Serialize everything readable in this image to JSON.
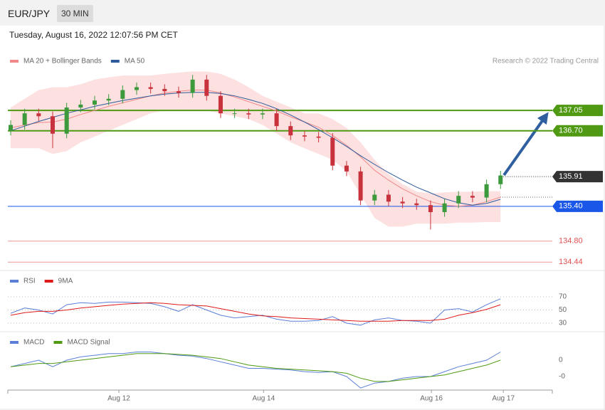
{
  "header": {
    "symbol": "EUR/JPY",
    "interval": "30 MIN",
    "timestamp": "Tuesday, August 16, 2022 12:07:56 PM CET"
  },
  "chart_data": [
    {
      "type": "candlestick",
      "credit": "Research © 2022 Trading Central",
      "ylim": [
        134.32,
        137.97
      ],
      "up_color": "#3c9a3c",
      "down_color": "#c8323c",
      "band_color": "#fde0e0",
      "open": [
        136.7,
        136.8,
        137.0,
        136.95,
        136.65,
        137.1,
        137.15,
        137.22,
        137.25,
        137.4,
        137.45,
        137.42,
        137.38,
        137.35,
        137.58,
        137.3,
        137.0,
        137.0,
        136.98,
        137.0,
        136.78,
        136.62,
        136.6,
        136.58,
        136.1,
        136.0,
        135.5,
        135.6,
        135.48,
        135.45,
        135.42,
        135.3,
        135.45,
        135.58,
        135.55,
        135.78
      ],
      "high": [
        136.88,
        137.08,
        137.08,
        137.03,
        137.18,
        137.23,
        137.3,
        137.33,
        137.48,
        137.53,
        137.53,
        137.5,
        137.46,
        137.66,
        137.66,
        137.38,
        137.08,
        137.08,
        137.08,
        137.08,
        136.86,
        136.7,
        136.68,
        136.66,
        136.18,
        136.08,
        135.68,
        135.68,
        135.56,
        135.53,
        135.5,
        135.53,
        135.66,
        135.66,
        135.86,
        136.01
      ],
      "low": [
        136.62,
        136.72,
        136.87,
        136.4,
        136.57,
        137.02,
        137.07,
        137.14,
        137.17,
        137.32,
        137.34,
        137.3,
        137.27,
        137.27,
        137.22,
        136.92,
        136.92,
        136.9,
        136.9,
        136.7,
        136.54,
        136.52,
        136.5,
        136.02,
        135.92,
        135.42,
        135.42,
        135.4,
        135.37,
        135.34,
        135.0,
        135.22,
        135.37,
        135.47,
        135.47,
        135.7
      ],
      "close": [
        136.8,
        137.0,
        136.95,
        136.65,
        137.1,
        137.15,
        137.22,
        137.25,
        137.4,
        137.45,
        137.42,
        137.38,
        137.35,
        137.58,
        137.3,
        137.0,
        137.0,
        136.98,
        137.0,
        136.78,
        136.62,
        136.6,
        136.58,
        136.1,
        136.0,
        135.5,
        135.6,
        135.48,
        135.45,
        135.42,
        135.3,
        135.45,
        135.58,
        135.55,
        135.78,
        135.93
      ],
      "series": [
        {
          "name": "MA 20 + Bollinger Bands",
          "color": "#f08a8a",
          "values": [
            136.75,
            136.8,
            136.84,
            136.85,
            136.9,
            136.98,
            137.05,
            137.12,
            137.18,
            137.24,
            137.3,
            137.35,
            137.38,
            137.4,
            137.4,
            137.35,
            137.28,
            137.2,
            137.12,
            137.04,
            136.94,
            136.85,
            136.76,
            136.62,
            136.45,
            136.25,
            136.02,
            135.85,
            135.7,
            135.58,
            135.48,
            135.42,
            135.4,
            135.42,
            135.48,
            135.56
          ],
          "upper": [
            137.1,
            137.25,
            137.4,
            137.45,
            137.45,
            137.5,
            137.58,
            137.62,
            137.65,
            137.65,
            137.65,
            137.68,
            137.7,
            137.72,
            137.72,
            137.68,
            137.58,
            137.45,
            137.3,
            137.2,
            137.1,
            137.0,
            137.0,
            136.9,
            136.75,
            136.5,
            136.2,
            135.95,
            135.78,
            135.65,
            135.62,
            135.64,
            135.65,
            135.65,
            135.66,
            135.66
          ],
          "lower": [
            136.4,
            136.4,
            136.4,
            136.3,
            136.35,
            136.5,
            136.6,
            136.7,
            136.8,
            136.9,
            137.0,
            137.05,
            137.05,
            137.05,
            137.05,
            137.0,
            136.95,
            136.9,
            136.8,
            136.65,
            136.5,
            136.4,
            136.3,
            136.2,
            136.0,
            135.6,
            135.2,
            135.05,
            135.05,
            135.1,
            135.1,
            135.1,
            135.12,
            135.12,
            135.13,
            135.13
          ]
        },
        {
          "name": "MA 50",
          "color": "#2d5a9a",
          "values": [
            136.7,
            136.78,
            136.86,
            136.93,
            137.0,
            137.06,
            137.12,
            137.17,
            137.22,
            137.26,
            137.3,
            137.33,
            137.35,
            137.36,
            137.36,
            137.34,
            137.3,
            137.24,
            137.17,
            137.08,
            136.97,
            136.85,
            136.72,
            136.58,
            136.43,
            136.27,
            136.12,
            135.98,
            135.85,
            135.73,
            135.63,
            135.53,
            135.46,
            135.42,
            135.45,
            135.52
          ]
        }
      ],
      "levels": [
        {
          "value": 137.05,
          "color": "#4f9a12",
          "box": true
        },
        {
          "value": 136.7,
          "label": "136.70",
          "color": "#4f9a12",
          "box": true
        },
        {
          "value": 135.4,
          "label": "135.40",
          "color": "#1a56e8",
          "box": true
        },
        {
          "value": 134.8,
          "label": "134.80",
          "color": "#e05050",
          "box": false
        },
        {
          "value": 134.44,
          "color": "#e05050",
          "box": false
        }
      ],
      "last_price": {
        "value": 135.91,
        "color": "#333333"
      }
    },
    {
      "type": "line",
      "ylim": [
        20,
        100
      ],
      "yticks": [
        30,
        50,
        70
      ],
      "grid": true,
      "series": [
        {
          "name": "RSI",
          "color": "#5b7fd6",
          "values": [
            45,
            53,
            50,
            44,
            58,
            61,
            60,
            62,
            62,
            61,
            60,
            55,
            48,
            58,
            50,
            42,
            38,
            40,
            42,
            36,
            33,
            33,
            34,
            40,
            30,
            27,
            35,
            38,
            34,
            33,
            30,
            50,
            52,
            47,
            58,
            67
          ]
        },
        {
          "name": "9MA",
          "color": "#dd1a1a",
          "values": [
            42,
            46,
            48,
            48,
            50,
            53,
            55,
            57,
            59,
            60,
            61,
            60,
            58,
            57,
            56,
            52,
            48,
            44,
            41,
            40,
            38,
            37,
            36,
            35,
            34,
            33,
            33,
            33,
            34,
            34,
            34,
            36,
            42,
            46,
            51,
            58
          ]
        }
      ]
    },
    {
      "type": "line",
      "ylim": [
        -0.19,
        0.1565
      ],
      "yticks": [
        0,
        {
          "value": -0.1,
          "label": "-0"
        }
      ],
      "grid": false,
      "xlim": [
        0,
        38.7
      ],
      "xticks": [
        {
          "value": 7.73,
          "label": "Aug 12"
        },
        {
          "value": 18.07,
          "label": "Aug 14"
        },
        {
          "value": 30.06,
          "label": "Aug 16"
        },
        {
          "value": 35.2,
          "label": "Aug 17"
        }
      ],
      "series": [
        {
          "name": "MACD",
          "color": "#5b7fd6",
          "values": [
            -0.04,
            -0.02,
            0.0,
            -0.04,
            0.0,
            0.02,
            0.03,
            0.04,
            0.04,
            0.05,
            0.05,
            0.04,
            0.03,
            0.025,
            0.01,
            -0.01,
            -0.03,
            -0.05,
            -0.05,
            -0.055,
            -0.06,
            -0.07,
            -0.075,
            -0.07,
            -0.1,
            -0.17,
            -0.14,
            -0.13,
            -0.11,
            -0.1,
            -0.1,
            -0.07,
            -0.04,
            -0.02,
            0.0,
            0.05
          ]
        },
        {
          "name": "MACD Signal",
          "color": "#4f9a12",
          "values": [
            -0.04,
            -0.03,
            -0.02,
            -0.02,
            -0.01,
            0.0,
            0.01,
            0.02,
            0.03,
            0.04,
            0.04,
            0.04,
            0.035,
            0.03,
            0.02,
            0.01,
            -0.01,
            -0.03,
            -0.04,
            -0.05,
            -0.055,
            -0.06,
            -0.065,
            -0.07,
            -0.08,
            -0.11,
            -0.13,
            -0.13,
            -0.12,
            -0.11,
            -0.1,
            -0.09,
            -0.07,
            -0.05,
            -0.03,
            0.0
          ]
        }
      ]
    }
  ]
}
